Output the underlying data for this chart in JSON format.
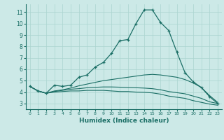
{
  "xlabel": "Humidex (Indice chaleur)",
  "background_color": "#cce9e7",
  "grid_color": "#aad4d0",
  "line_color": "#1a6e65",
  "xlim": [
    -0.5,
    23.5
  ],
  "ylim": [
    2.5,
    11.7
  ],
  "xticks": [
    0,
    1,
    2,
    3,
    4,
    5,
    6,
    7,
    8,
    9,
    10,
    11,
    12,
    13,
    14,
    15,
    16,
    17,
    18,
    19,
    20,
    21,
    22,
    23
  ],
  "yticks": [
    3,
    4,
    5,
    6,
    7,
    8,
    9,
    10,
    11
  ],
  "series": [
    [
      4.5,
      4.1,
      3.9,
      4.6,
      4.5,
      4.6,
      5.3,
      5.5,
      6.2,
      6.6,
      7.4,
      8.5,
      8.6,
      10.0,
      11.2,
      11.2,
      10.1,
      9.4,
      7.5,
      5.7,
      4.9,
      4.4,
      3.6,
      3.0
    ],
    [
      4.5,
      4.1,
      3.9,
      4.1,
      4.2,
      4.35,
      4.55,
      4.7,
      4.85,
      5.0,
      5.1,
      5.2,
      5.3,
      5.4,
      5.5,
      5.55,
      5.5,
      5.4,
      5.3,
      5.1,
      4.8,
      4.4,
      3.7,
      3.1
    ],
    [
      4.5,
      4.1,
      3.9,
      4.05,
      4.15,
      4.25,
      4.3,
      4.38,
      4.42,
      4.45,
      4.45,
      4.43,
      4.4,
      4.38,
      4.35,
      4.3,
      4.2,
      4.05,
      3.95,
      3.85,
      3.65,
      3.45,
      3.15,
      3.0
    ],
    [
      4.5,
      4.1,
      3.9,
      4.0,
      4.05,
      4.1,
      4.1,
      4.15,
      4.15,
      4.15,
      4.1,
      4.05,
      4.05,
      4.0,
      3.98,
      3.93,
      3.82,
      3.65,
      3.55,
      3.45,
      3.25,
      3.1,
      2.95,
      2.85
    ]
  ]
}
